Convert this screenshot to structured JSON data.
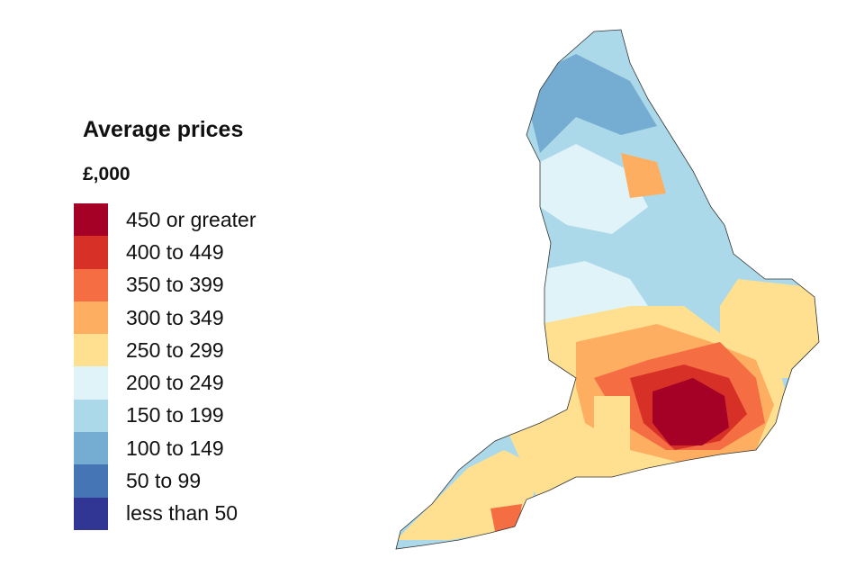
{
  "legend": {
    "title": "Average prices",
    "unit": "£,000",
    "items": [
      {
        "label": "450 or greater",
        "color": "#a50026"
      },
      {
        "label": "400 to 449",
        "color": "#d73027"
      },
      {
        "label": "350 to 399",
        "color": "#f46d43"
      },
      {
        "label": "300 to 349",
        "color": "#fdae61"
      },
      {
        "label": "250 to 299",
        "color": "#fee090"
      },
      {
        "label": "200 to 249",
        "color": "#e0f3f8"
      },
      {
        "label": "150 to 199",
        "color": "#abd9e9"
      },
      {
        "label": "100 to 149",
        "color": "#74add1"
      },
      {
        "label": "50 to 99",
        "color": "#4575b4"
      },
      {
        "label": "less than 50",
        "color": "#313695"
      }
    ]
  }
}
